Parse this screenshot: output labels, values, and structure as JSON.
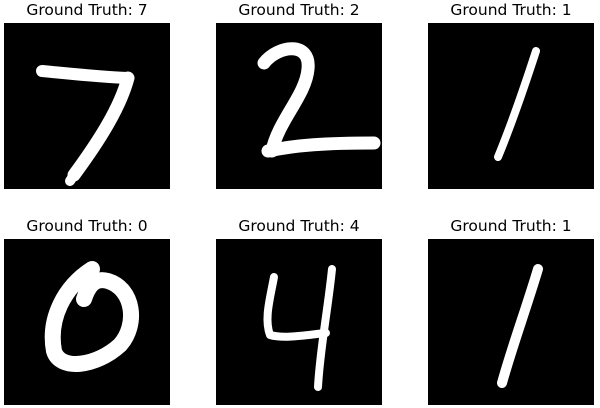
{
  "panels": [
    {
      "title": "Ground Truth: 7",
      "digit": "7"
    },
    {
      "title": "Ground Truth: 2",
      "digit": "2"
    },
    {
      "title": "Ground Truth: 1",
      "digit": "1"
    },
    {
      "title": "Ground Truth: 0",
      "digit": "0"
    },
    {
      "title": "Ground Truth: 4",
      "digit": "4"
    },
    {
      "title": "Ground Truth: 1",
      "digit": "1"
    }
  ],
  "colors": {
    "background": "#ffffff",
    "image_background": "#000000",
    "digit_stroke": "#ffffff"
  }
}
